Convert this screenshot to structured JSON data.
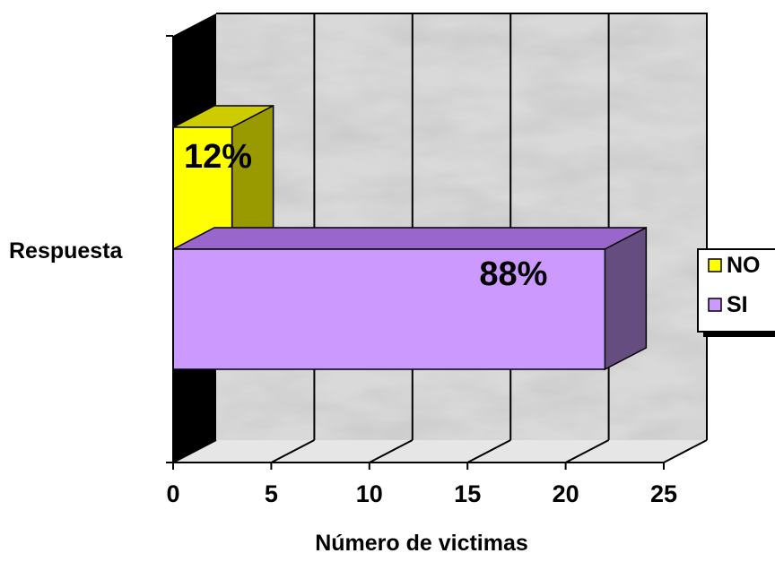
{
  "chart_data": {
    "type": "bar",
    "orientation": "horizontal",
    "three_d": true,
    "categories": [
      "Respuesta"
    ],
    "series": [
      {
        "name": "NO",
        "values": [
          3
        ],
        "data_label": "12%",
        "color": "#FFFF00"
      },
      {
        "name": "SI",
        "values": [
          22
        ],
        "data_label": "88%",
        "color": "#CC99FF"
      }
    ],
    "title": "",
    "xlabel": "Número de victimas",
    "ylabel": "",
    "xlim": [
      0,
      25
    ],
    "x_ticks": [
      "0",
      "5",
      "10",
      "15",
      "20",
      "25"
    ],
    "grid": true,
    "legend": "right",
    "colors": {
      "wall": "#d9d9d9",
      "side_wall": "#000000",
      "no_top": "#cccc00",
      "no_side": "#999900",
      "si_top": "#9966cc",
      "si_side": "#664d80"
    }
  }
}
